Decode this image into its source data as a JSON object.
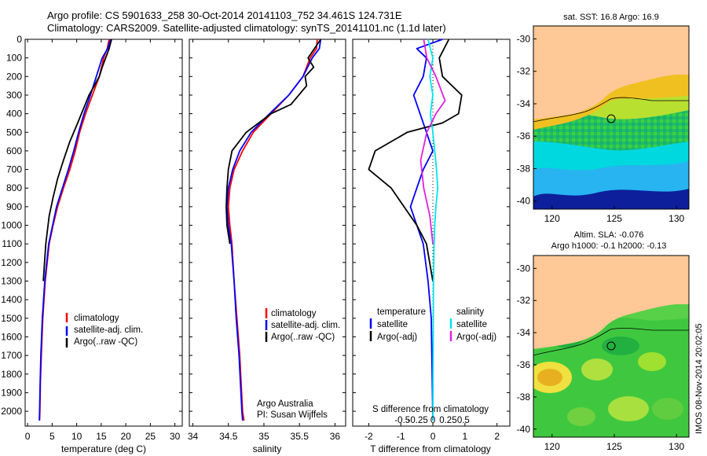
{
  "header": {
    "line1": "Argo profile: CS 5901633_258 30-Oct-2014 20141103_752 34.461S 124.731E",
    "line2": "Climatology: CARS2009. Satellite-adjusted climatology: synTS_20141101.nc (1.1d later)"
  },
  "colors": {
    "climatology": "#ff0000",
    "satellite": "#0000ff",
    "argo": "#000000",
    "sal_diff_sat": "#00e5ee",
    "sal_diff_argo": "#e020e0",
    "land": "#ffc896"
  },
  "chart_data": [
    {
      "type": "line",
      "panel": "temperature",
      "xlabel": "temperature (deg C)",
      "ylabel": "",
      "xlim": [
        -0.5,
        31.5
      ],
      "ylim": [
        2080,
        0
      ],
      "x_ticks": [
        0,
        5,
        10,
        15,
        20,
        25,
        30
      ],
      "x_tick_labels": [
        "0",
        "5",
        "10",
        "15",
        "20",
        "25",
        "30"
      ],
      "y_ticks": [
        0,
        100,
        200,
        300,
        400,
        500,
        600,
        700,
        800,
        900,
        1000,
        1100,
        1200,
        1300,
        1400,
        1500,
        1600,
        1700,
        1800,
        1900,
        2000
      ],
      "y_tick_labels": [
        "0",
        "100",
        "200",
        "300",
        "400",
        "500",
        "600",
        "700",
        "800",
        "900",
        "1000",
        "1100",
        "1200",
        "1300",
        "1400",
        "1500",
        "1600",
        "1700",
        "1800",
        "1900",
        "2000"
      ],
      "legend": [
        "climatology",
        "satellite-adj. clim.",
        "Argo(..raw -QC)"
      ],
      "series": [
        {
          "name": "climatology",
          "color": "#ff0000",
          "x": [
            16.6,
            16.2,
            15.5,
            14.6,
            13.2,
            11.8,
            10.6,
            9.7,
            8.6,
            7.3,
            6.1,
            5.2,
            4.4,
            3.6,
            3.1,
            2.8,
            2.6,
            2.5,
            2.45
          ],
          "y": [
            0,
            50,
            100,
            200,
            300,
            400,
            500,
            600,
            700,
            800,
            900,
            1000,
            1100,
            1300,
            1500,
            1700,
            1850,
            2000,
            2050
          ]
        },
        {
          "name": "satellite-adj. clim.",
          "color": "#0000ff",
          "x": [
            16.9,
            16.3,
            15.2,
            14.0,
            12.8,
            11.5,
            10.4,
            9.4,
            8.3,
            7.1,
            5.9,
            5.1,
            4.3,
            3.5,
            3.0,
            2.7,
            2.55,
            2.45,
            2.4
          ],
          "y": [
            0,
            50,
            100,
            200,
            300,
            400,
            500,
            600,
            700,
            800,
            900,
            1000,
            1100,
            1300,
            1500,
            1700,
            1850,
            2000,
            2050
          ]
        },
        {
          "name": "Argo(..raw -QC)",
          "color": "#000000",
          "x": [
            17.1,
            16.6,
            15.9,
            15.2,
            14.6,
            13.6,
            12.5,
            10.2,
            8.6,
            7.3,
            6.1,
            5.2,
            4.4,
            3.7,
            3.2
          ],
          "y": [
            0,
            50,
            100,
            150,
            200,
            250,
            300,
            450,
            550,
            650,
            750,
            850,
            950,
            1100,
            1300
          ]
        }
      ]
    },
    {
      "type": "line",
      "panel": "salinity",
      "xlabel": "salinity",
      "xlim": [
        33.95,
        36.15
      ],
      "ylim": [
        2080,
        0
      ],
      "x_ticks": [
        34,
        34.5,
        35,
        35.5,
        36
      ],
      "x_tick_labels": [
        "34",
        "34.5",
        "35",
        "35.5",
        "36"
      ],
      "legend": [
        "climatology",
        "satellite-adj. clim.",
        "Argo(..raw -QC)"
      ],
      "annotation": [
        "Argo Australia",
        "PI: Susan Wijffels"
      ],
      "series": [
        {
          "name": "climatology",
          "color": "#ff0000",
          "x": [
            35.75,
            35.74,
            35.65,
            35.55,
            35.35,
            35.1,
            34.85,
            34.7,
            34.58,
            34.52,
            34.5,
            34.52,
            34.55,
            34.58,
            34.62,
            34.66,
            34.68,
            34.7,
            34.72
          ],
          "y": [
            0,
            50,
            100,
            200,
            300,
            400,
            500,
            600,
            700,
            800,
            900,
            1000,
            1100,
            1300,
            1500,
            1700,
            1850,
            2000,
            2050
          ]
        },
        {
          "name": "satellite-adj. clim.",
          "color": "#0000ff",
          "x": [
            35.8,
            35.78,
            35.68,
            35.55,
            35.35,
            35.08,
            34.82,
            34.66,
            34.56,
            34.5,
            34.48,
            34.5,
            34.54,
            34.58,
            34.61,
            34.65,
            34.67,
            34.69,
            34.7
          ],
          "y": [
            0,
            50,
            100,
            200,
            300,
            400,
            500,
            600,
            700,
            800,
            900,
            1000,
            1100,
            1300,
            1500,
            1700,
            1850,
            2000,
            2050
          ]
        },
        {
          "name": "Argo(..raw -QC)",
          "color": "#000000",
          "x": [
            35.8,
            35.62,
            35.7,
            35.58,
            35.6,
            35.38,
            35.1,
            34.75,
            34.55,
            34.5,
            34.48,
            34.47,
            34.48,
            34.52
          ],
          "y": [
            0,
            100,
            150,
            200,
            250,
            350,
            400,
            500,
            600,
            700,
            800,
            900,
            1000,
            1100
          ]
        }
      ]
    },
    {
      "type": "line",
      "panel": "difference",
      "xlabel": "T difference from climatology",
      "xlabel_top": "S difference from climatology",
      "xlim": [
        -2.5,
        2.4
      ],
      "ylim": [
        2080,
        0
      ],
      "x_ticks": [
        -2,
        -1,
        0,
        1,
        2
      ],
      "x_tick_labels": [
        "-2",
        "-1",
        "0",
        "1",
        "2"
      ],
      "s_ticks": [
        -0.5,
        -0.25,
        0,
        0.25,
        0.5
      ],
      "s_tick_labels": [
        "-0.5",
        "-0.25",
        "0",
        "0.25",
        "0.5"
      ],
      "legend_temperature": {
        "heading": "temperature",
        "items": [
          "satellite",
          "Argo(-adj)"
        ]
      },
      "legend_salinity": {
        "heading": "salinity",
        "items": [
          "satellite",
          "Argo(-adj)"
        ]
      },
      "series": [
        {
          "name": "temperature satellite",
          "color": "#0000ff",
          "x": [
            0.3,
            -0.5,
            -0.2,
            -0.3,
            -0.6,
            -0.4,
            -0.2,
            0.0,
            -0.3,
            -0.5,
            -0.7,
            -0.5,
            -0.3,
            -0.15,
            -0.05,
            0.0
          ],
          "y": [
            0,
            50,
            100,
            200,
            300,
            400,
            500,
            600,
            700,
            800,
            900,
            1000,
            1100,
            1300,
            1500,
            2050
          ]
        },
        {
          "name": "temperature Argo(-adj)",
          "color": "#000000",
          "x": [
            0.5,
            0.2,
            0.3,
            0.9,
            0.8,
            0.3,
            -0.8,
            -1.8,
            -2.0,
            -1.3,
            -0.9,
            -0.5,
            -0.2,
            0.0
          ],
          "y": [
            0,
            100,
            200,
            300,
            400,
            450,
            500,
            600,
            700,
            800,
            900,
            1000,
            1100,
            1300
          ]
        },
        {
          "name": "salinity satellite",
          "color": "#00e5ee",
          "x": [
            -0.08,
            0.0,
            -0.05,
            0.0,
            -0.04,
            0.0,
            0.03,
            0.06,
            0.08,
            0.05,
            0.03,
            0.02,
            0.01,
            0.0
          ],
          "y": [
            0,
            100,
            200,
            300,
            400,
            500,
            600,
            700,
            800,
            900,
            1000,
            1100,
            1300,
            2050
          ]
        },
        {
          "name": "salinity Argo(-adj)",
          "color": "#e020e0",
          "x": [
            -0.15,
            -0.1,
            0.05,
            0.2,
            0.05,
            -0.1,
            -0.2,
            -0.15,
            -0.05,
            0.0
          ],
          "y": [
            0,
            100,
            200,
            330,
            400,
            500,
            650,
            800,
            950,
            1100
          ]
        }
      ]
    },
    {
      "type": "heatmap",
      "panel": "sst-map",
      "title": "sat. SST: 16.8 Argo: 16.9",
      "xlim": [
        118.5,
        131
      ],
      "ylim": [
        -40.5,
        -29.2
      ],
      "x_ticks": [
        120,
        125,
        130
      ],
      "x_tick_labels": [
        "120",
        "125",
        "130"
      ],
      "y_ticks": [
        -30,
        -32,
        -34,
        -36,
        -38,
        -40
      ],
      "y_tick_labels": [
        "-30",
        "-32",
        "-34",
        "-36",
        "-38",
        "-40"
      ],
      "float_position": [
        124.731,
        -34.461
      ]
    },
    {
      "type": "heatmap",
      "panel": "sla-map",
      "title": "Altim. SLA: -0.076",
      "subtitle": "Argo h1000: -0.1 h2000: -0.13",
      "xlim": [
        118.5,
        131
      ],
      "ylim": [
        -40.5,
        -29.2
      ],
      "x_ticks": [
        120,
        125,
        130
      ],
      "x_tick_labels": [
        "120",
        "125",
        "130"
      ],
      "y_ticks": [
        -30,
        -32,
        -34,
        -36,
        -38,
        -40
      ],
      "y_tick_labels": [
        "-30",
        "-32",
        "-34",
        "-36",
        "-38",
        "-40"
      ],
      "float_position": [
        124.731,
        -34.461
      ]
    }
  ],
  "stamp": "IMOS 08-Nov-2014 20:02:05"
}
